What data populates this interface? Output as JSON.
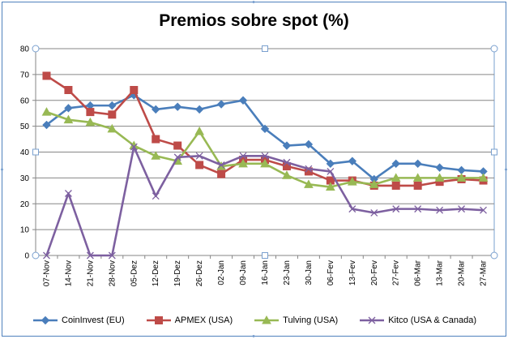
{
  "chart_data": {
    "type": "line",
    "title": "Premios sobre spot (%)",
    "xlabel": "",
    "ylabel": "",
    "ylim": [
      0,
      80
    ],
    "yticks": [
      0,
      10,
      20,
      30,
      40,
      50,
      60,
      70,
      80
    ],
    "grid": "horizontal",
    "legend_position": "bottom",
    "categories": [
      "07-Nov",
      "14-Nov",
      "21-Nov",
      "28-Nov",
      "05-Dez",
      "12-Dez",
      "19-Dez",
      "26-Dez",
      "02-Jan",
      "09-Jan",
      "16-Jan",
      "23-Jan",
      "30-Jan",
      "06-Fev",
      "13-Fev",
      "20-Fev",
      "27-Fev",
      "06-Mar",
      "13-Mar",
      "20-Mar",
      "27-Mar"
    ],
    "series": [
      {
        "name": "CoinInvest (EU)",
        "color": "#4a7ebb",
        "marker": "diamond",
        "values": [
          50.5,
          57,
          58,
          58,
          62,
          56.5,
          57.5,
          56.5,
          58.5,
          60,
          49,
          42.5,
          43,
          35.5,
          36.5,
          29.5,
          35.5,
          35.5,
          34,
          33,
          32.5
        ]
      },
      {
        "name": "APMEX (USA)",
        "color": "#be4b48",
        "marker": "square",
        "values": [
          69.5,
          64,
          55.5,
          54.5,
          64,
          45,
          42.5,
          35,
          31.5,
          37,
          37,
          34.5,
          32.5,
          29,
          29,
          27,
          27,
          27,
          28.5,
          29.5,
          29
        ]
      },
      {
        "name": "Tulving (USA)",
        "color": "#98b954",
        "marker": "triangle",
        "values": [
          55.5,
          52.5,
          51.5,
          49,
          42.5,
          38.5,
          36.5,
          48,
          34.5,
          35.5,
          35.5,
          31,
          27.5,
          26.5,
          28.5,
          27.5,
          30,
          30,
          30,
          30,
          30
        ]
      },
      {
        "name": "Kitco (USA & Canada)",
        "color": "#7d60a0",
        "marker": "x",
        "values": [
          0,
          24,
          0,
          0,
          42,
          23,
          38,
          38.5,
          35,
          38.5,
          38.5,
          36,
          33.5,
          32.5,
          18,
          16.5,
          18,
          18,
          17.5,
          18,
          17.5
        ]
      }
    ]
  }
}
